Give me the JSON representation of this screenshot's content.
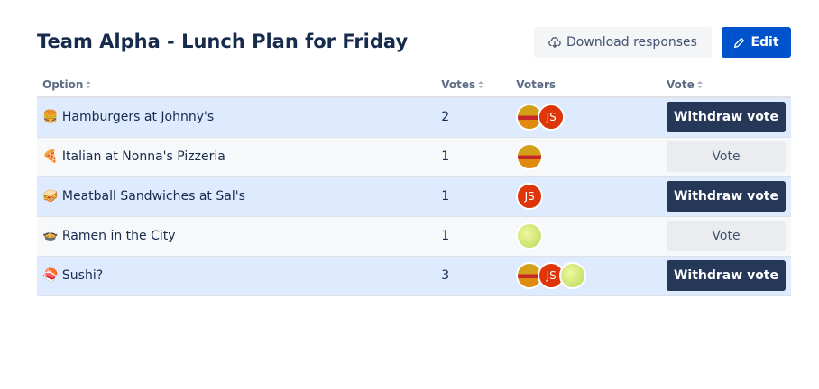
{
  "header": {
    "title": "Team Alpha - Lunch Plan for Friday",
    "buttons": [
      "Download responses",
      "Edit"
    ]
  },
  "table": {
    "columns": [
      "Option",
      "Votes",
      "Voters",
      "Vote"
    ],
    "rows": [
      {
        "icon": "🍔",
        "option": "Hamburgers at Johnny's",
        "votes": 2,
        "voters": [
          "JS"
        ],
        "action": "Withdraw vote"
      },
      {
        "icon": "🍕",
        "option": "Italian at Nonna's Pizzeria",
        "votes": 1,
        "voters": [],
        "action": "Vote"
      },
      {
        "icon": "🥪",
        "option": "Meatball Sandwiches at Sal's",
        "votes": 1,
        "voters": [
          "JS"
        ],
        "action": "Withdraw vote"
      },
      {
        "icon": "🍲",
        "option": "Ramen in the City",
        "votes": 1,
        "voters": [],
        "action": "Vote"
      },
      {
        "icon": "🍣",
        "option": "Sushi?",
        "votes": 3,
        "voters": [
          "JS"
        ],
        "action": "Withdraw vote"
      }
    ]
  }
}
